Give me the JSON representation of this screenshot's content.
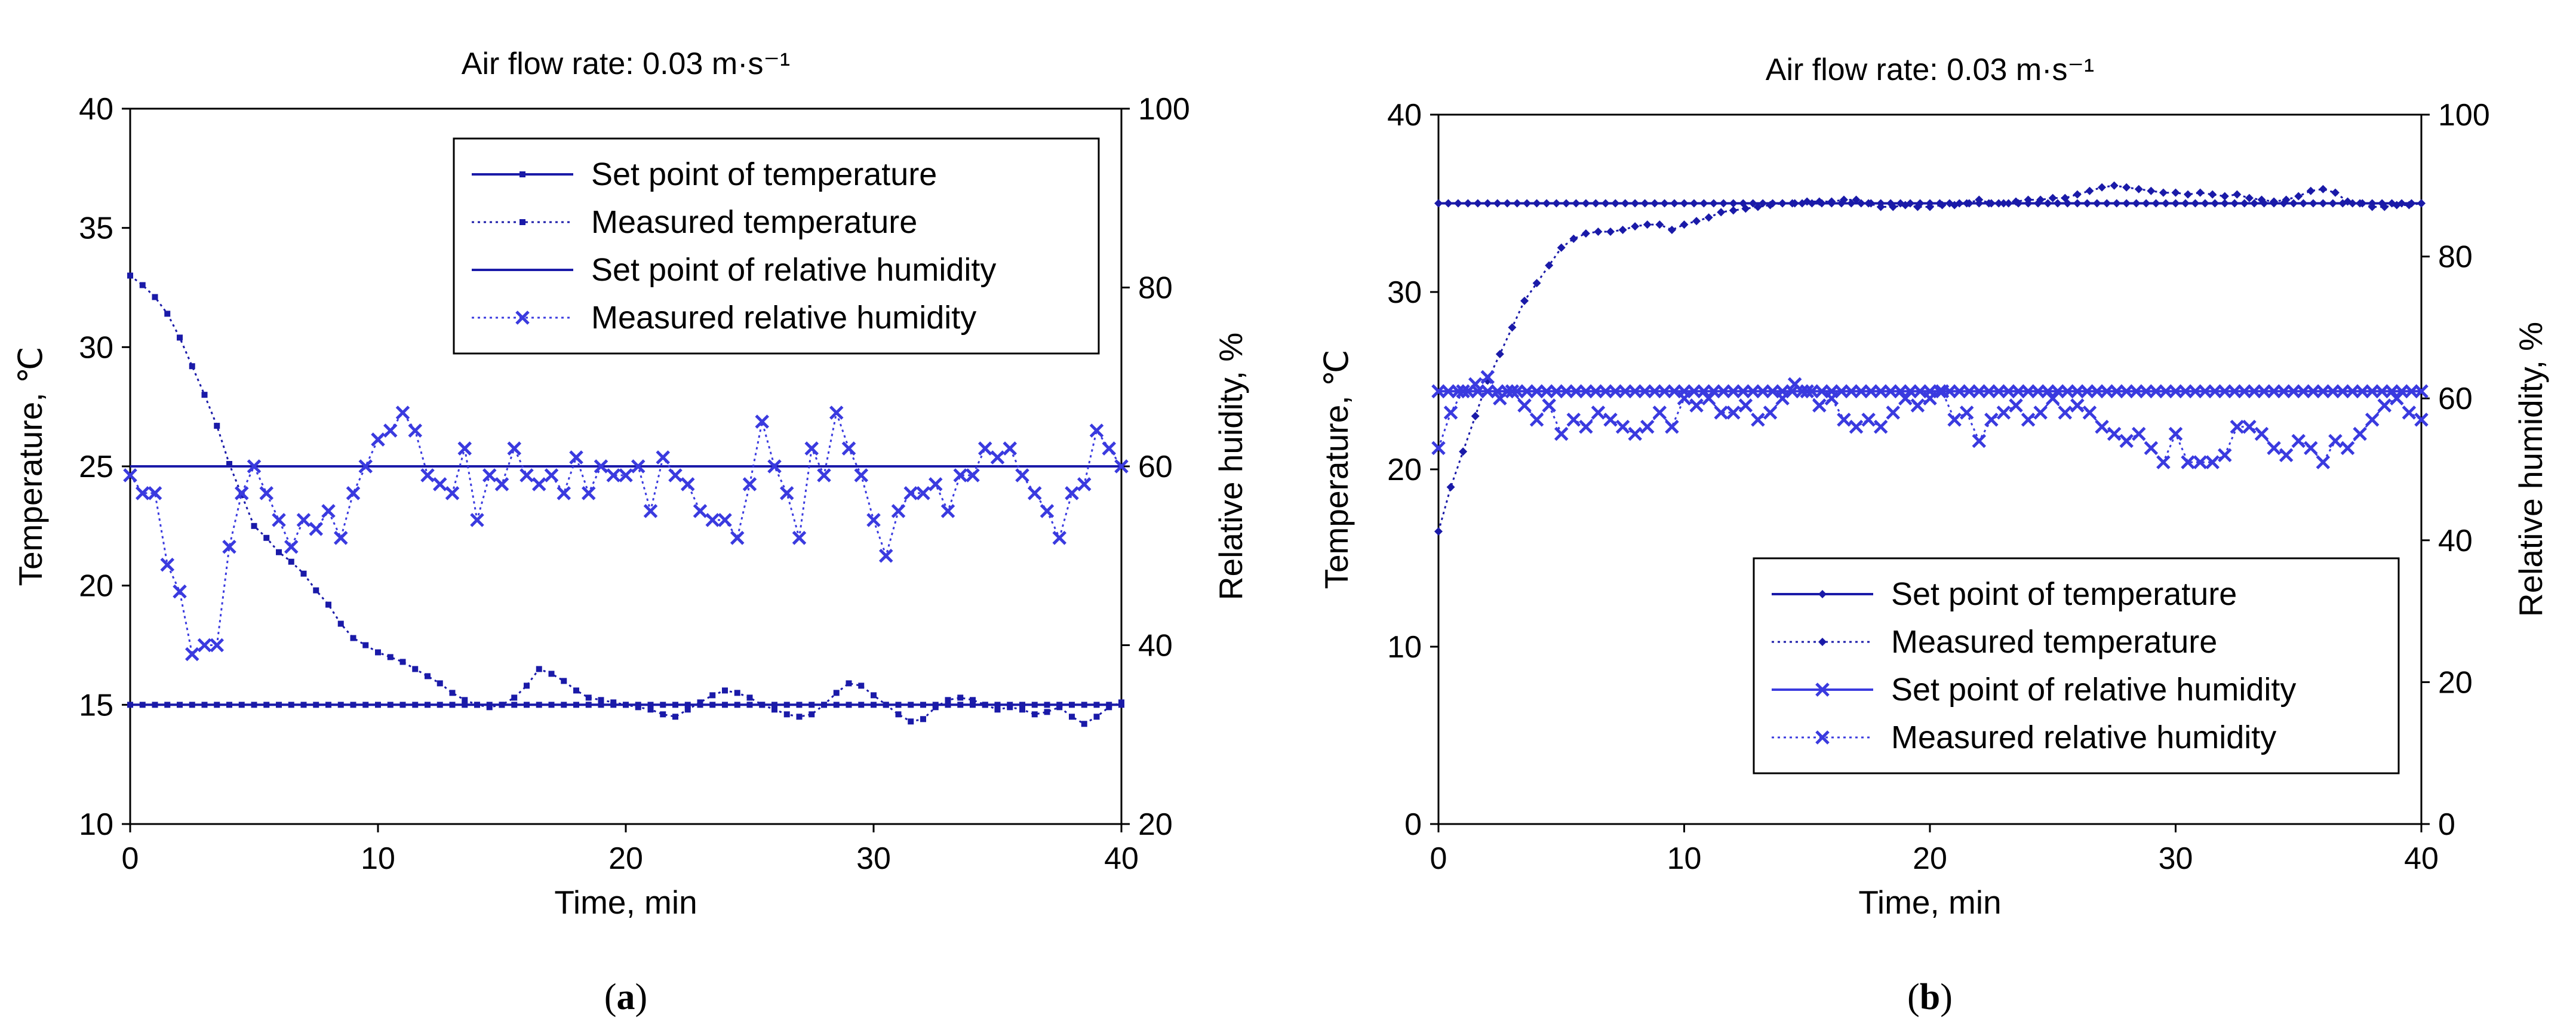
{
  "chart_data": [
    {
      "type": "line",
      "panel": "a",
      "caption": {
        "open": "(",
        "letter": "a",
        "close": ")"
      },
      "title": "Air flow rate: 0.03 m·s⁻¹",
      "xlabel": "Time, min",
      "ylabel_left": "Temperature, ℃",
      "ylabel_right": "Relative huidity, %",
      "xlim": [
        0,
        40
      ],
      "ylim_left": [
        10,
        40
      ],
      "ylim_right": [
        20,
        100
      ],
      "x_ticks": [
        "0",
        "10",
        "20",
        "30",
        "40"
      ],
      "y_left_ticks": [
        "10",
        "15",
        "20",
        "25",
        "30",
        "35",
        "40"
      ],
      "y_right_ticks": [
        "20",
        "40",
        "60",
        "80",
        "100"
      ],
      "legend_position": "top-right",
      "series": [
        {
          "name": "Set point of temperature",
          "axis": "left",
          "style": "solid-square",
          "x": [
            0,
            40
          ],
          "y": [
            15,
            15
          ]
        },
        {
          "name": "Measured temperature",
          "axis": "left",
          "style": "dotted-square",
          "x": [
            0,
            0.5,
            1,
            1.5,
            2,
            2.5,
            3,
            3.5,
            4,
            4.5,
            5,
            5.5,
            6,
            6.5,
            7,
            7.5,
            8,
            8.5,
            9,
            9.5,
            10,
            10.5,
            11,
            11.5,
            12,
            12.5,
            13,
            13.5,
            14,
            14.5,
            15,
            15.5,
            16,
            16.5,
            17,
            17.5,
            18,
            18.5,
            19,
            19.5,
            20,
            20.5,
            21,
            21.5,
            22,
            22.5,
            23,
            23.5,
            24,
            24.5,
            25,
            25.5,
            26,
            26.5,
            27,
            27.5,
            28,
            28.5,
            29,
            29.5,
            30,
            30.5,
            31,
            31.5,
            32,
            32.5,
            33,
            33.5,
            34,
            34.5,
            35,
            35.5,
            36,
            36.5,
            37,
            37.5,
            38,
            38.5,
            39,
            39.5,
            40
          ],
          "y": [
            33,
            32.6,
            32.1,
            31.4,
            30.4,
            29.2,
            28,
            26.7,
            25.1,
            23.8,
            22.5,
            22,
            21.4,
            21,
            20.5,
            19.8,
            19.2,
            18.4,
            17.8,
            17.5,
            17.2,
            17,
            16.8,
            16.5,
            16.2,
            15.9,
            15.5,
            15.2,
            15,
            14.9,
            15,
            15.3,
            15.8,
            16.5,
            16.3,
            16,
            15.6,
            15.3,
            15.2,
            15.1,
            15,
            14.9,
            14.8,
            14.6,
            14.5,
            14.8,
            15.1,
            15.4,
            15.6,
            15.5,
            15.3,
            15,
            14.8,
            14.6,
            14.5,
            14.6,
            15,
            15.5,
            15.9,
            15.8,
            15.4,
            15,
            14.6,
            14.3,
            14.4,
            14.9,
            15.2,
            15.3,
            15.2,
            15,
            14.8,
            14.9,
            14.8,
            14.6,
            14.7,
            14.9,
            14.5,
            14.2,
            14.5,
            14.9,
            15.1
          ]
        },
        {
          "name": "Set point of relative humidity",
          "axis": "right",
          "style": "solid",
          "x": [
            0,
            40
          ],
          "y": [
            60,
            60
          ]
        },
        {
          "name": "Measured relative humidity",
          "axis": "right",
          "style": "dotted-x",
          "x": [
            0,
            0.5,
            1,
            1.5,
            2,
            2.5,
            3,
            3.5,
            4,
            4.5,
            5,
            5.5,
            6,
            6.5,
            7,
            7.5,
            8,
            8.5,
            9,
            9.5,
            10,
            10.5,
            11,
            11.5,
            12,
            12.5,
            13,
            13.5,
            14,
            14.5,
            15,
            15.5,
            16,
            16.5,
            17,
            17.5,
            18,
            18.5,
            19,
            19.5,
            20,
            20.5,
            21,
            21.5,
            22,
            22.5,
            23,
            23.5,
            24,
            24.5,
            25,
            25.5,
            26,
            26.5,
            27,
            27.5,
            28,
            28.5,
            29,
            29.5,
            30,
            30.5,
            31,
            31.5,
            32,
            32.5,
            33,
            33.5,
            34,
            34.5,
            35,
            35.5,
            36,
            36.5,
            37,
            37.5,
            38,
            38.5,
            39,
            39.5,
            40
          ],
          "y": [
            59,
            57,
            57,
            49,
            46,
            39,
            40,
            40,
            51,
            57,
            60,
            57,
            54,
            51,
            54,
            53,
            55,
            52,
            57,
            60,
            63,
            64,
            66,
            64,
            59,
            58,
            57,
            62,
            54,
            59,
            58,
            62,
            59,
            58,
            59,
            57,
            61,
            57,
            60,
            59,
            59,
            60,
            55,
            61,
            59,
            58,
            55,
            54,
            54,
            52,
            58,
            65,
            60,
            57,
            52,
            62,
            59,
            66,
            62,
            59,
            54,
            50,
            55,
            57,
            57,
            58,
            55,
            59,
            59,
            62,
            61,
            62,
            59,
            57,
            55,
            52,
            57,
            58,
            64,
            62,
            60
          ]
        }
      ]
    },
    {
      "type": "line",
      "panel": "b",
      "caption": {
        "open": "(",
        "letter": "b",
        "close": ")"
      },
      "title": "Air flow rate: 0.03 m·s⁻¹",
      "xlabel": "Time, min",
      "ylabel_left": "Temperature, ℃",
      "ylabel_right": "Relative humidity, %",
      "xlim": [
        0,
        40
      ],
      "ylim_left": [
        0,
        40
      ],
      "ylim_right": [
        0,
        100
      ],
      "x_ticks": [
        "0",
        "10",
        "20",
        "30",
        "40"
      ],
      "y_left_ticks": [
        "0",
        "10",
        "20",
        "30",
        "40"
      ],
      "y_right_ticks": [
        "0",
        "20",
        "40",
        "60",
        "80",
        "100"
      ],
      "legend_position": "bottom-right",
      "series": [
        {
          "name": "Set point of temperature",
          "axis": "left",
          "style": "solid-diamond",
          "x": [
            0,
            40
          ],
          "y": [
            35,
            35
          ]
        },
        {
          "name": "Measured temperature",
          "axis": "left",
          "style": "dotted-diamond",
          "x": [
            0,
            0.5,
            1,
            1.5,
            2,
            2.5,
            3,
            3.5,
            4,
            4.5,
            5,
            5.5,
            6,
            6.5,
            7,
            7.5,
            8,
            8.5,
            9,
            9.5,
            10,
            10.5,
            11,
            11.5,
            12,
            12.5,
            13,
            13.5,
            14,
            14.5,
            15,
            15.5,
            16,
            16.5,
            17,
            17.5,
            18,
            18.5,
            19,
            19.5,
            20,
            20.5,
            21,
            21.5,
            22,
            22.5,
            23,
            23.5,
            24,
            24.5,
            25,
            25.5,
            26,
            26.5,
            27,
            27.5,
            28,
            28.5,
            29,
            29.5,
            30,
            30.5,
            31,
            31.5,
            32,
            32.5,
            33,
            33.5,
            34,
            34.5,
            35,
            35.5,
            36,
            36.5,
            37,
            37.5,
            38,
            38.5,
            39,
            39.5,
            40
          ],
          "y": [
            16.5,
            19,
            21,
            23,
            25,
            26.5,
            28,
            29.5,
            30.5,
            31.5,
            32.5,
            33,
            33.3,
            33.4,
            33.4,
            33.5,
            33.7,
            33.8,
            33.8,
            33.5,
            33.8,
            34,
            34.2,
            34.5,
            34.6,
            34.7,
            34.8,
            34.9,
            35,
            35,
            35.1,
            35.1,
            35.1,
            35.2,
            35.2,
            35,
            34.8,
            34.8,
            34.9,
            34.8,
            34.8,
            34.9,
            34.9,
            35,
            35.2,
            35,
            35,
            35.1,
            35.2,
            35.2,
            35.3,
            35.3,
            35.5,
            35.7,
            35.9,
            36,
            35.9,
            35.8,
            35.7,
            35.6,
            35.6,
            35.5,
            35.6,
            35.5,
            35.4,
            35.5,
            35.3,
            35.2,
            35.1,
            35.2,
            35.4,
            35.7,
            35.8,
            35.6,
            35.1,
            35,
            34.8,
            34.8,
            34.9,
            34.9,
            35
          ]
        },
        {
          "name": " Set point of relative humidity",
          "axis": "right",
          "style": "solid-x",
          "x": [
            0,
            40
          ],
          "y": [
            61,
            61
          ]
        },
        {
          "name": "Measured relative humidity",
          "axis": "right",
          "style": "dotted-x",
          "x": [
            0,
            0.5,
            1,
            1.5,
            2,
            2.5,
            3,
            3.5,
            4,
            4.5,
            5,
            5.5,
            6,
            6.5,
            7,
            7.5,
            8,
            8.5,
            9,
            9.5,
            10,
            10.5,
            11,
            11.5,
            12,
            12.5,
            13,
            13.5,
            14,
            14.5,
            15,
            15.5,
            16,
            16.5,
            17,
            17.5,
            18,
            18.5,
            19,
            19.5,
            20,
            20.5,
            21,
            21.5,
            22,
            22.5,
            23,
            23.5,
            24,
            24.5,
            25,
            25.5,
            26,
            26.5,
            27,
            27.5,
            28,
            28.5,
            29,
            29.5,
            30,
            30.5,
            31,
            31.5,
            32,
            32.5,
            33,
            33.5,
            34,
            34.5,
            35,
            35.5,
            36,
            36.5,
            37,
            37.5,
            38,
            38.5,
            39,
            39.5,
            40
          ],
          "y": [
            53,
            58,
            61,
            62,
            63,
            60,
            61,
            59,
            57,
            59,
            55,
            57,
            56,
            58,
            57,
            56,
            55,
            56,
            58,
            56,
            60,
            59,
            60,
            58,
            58,
            59,
            57,
            58,
            60,
            62,
            61,
            59,
            60,
            57,
            56,
            57,
            56,
            58,
            60,
            59,
            60,
            61,
            57,
            58,
            54,
            57,
            58,
            59,
            57,
            58,
            60,
            58,
            59,
            58,
            56,
            55,
            54,
            55,
            53,
            51,
            55,
            51,
            51,
            51,
            52,
            56,
            56,
            55,
            53,
            52,
            54,
            53,
            51,
            54,
            53,
            55,
            57,
            59,
            60,
            58,
            57
          ]
        }
      ]
    }
  ]
}
